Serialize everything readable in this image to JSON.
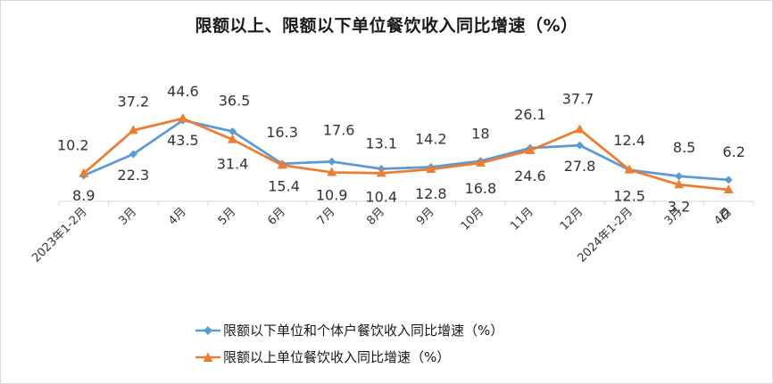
{
  "chart_data": {
    "type": "line",
    "title": "限额以上、限额以下单位餐饮收入同比增速（%）",
    "categories": [
      "2023年1-2月",
      "3月",
      "4月",
      "5月",
      "6月",
      "7月",
      "8月",
      "9月",
      "10月",
      "11月",
      "12月",
      "2024年1-2月",
      "3月",
      "4月"
    ],
    "series": [
      {
        "name": "限额以下单位和个体户餐饮收入同比增速（%）",
        "color": "#5b9bd5",
        "marker": "diamond",
        "values": [
          8.9,
          22.3,
          43.5,
          36.5,
          16.3,
          17.6,
          13.1,
          14.2,
          18,
          26.1,
          27.8,
          12.4,
          8.5,
          6.2
        ],
        "labels": [
          "8.9",
          "22.3",
          "43.5",
          "36.5",
          "16.3",
          "17.6",
          "13.1",
          "14.2",
          "18",
          "26.1",
          "27.8",
          "12.4",
          "8.5",
          "6.2"
        ]
      },
      {
        "name": "限额以上单位餐饮收入同比增速（%）",
        "color": "#ed7d31",
        "marker": "triangle",
        "values": [
          10.2,
          37.2,
          44.6,
          31.4,
          15.4,
          10.9,
          10.4,
          12.8,
          16.8,
          24.6,
          37.7,
          12.5,
          3.2,
          0
        ],
        "labels": [
          "10.2",
          "37.2",
          "44.6",
          "31.4",
          "15.4",
          "10.9",
          "10.4",
          "12.8",
          "16.8",
          "24.6",
          "37.7",
          "12.5",
          "3.2",
          "0"
        ]
      }
    ],
    "ylim": [
      0,
      50
    ],
    "grid": false,
    "legend_position": "bottom"
  }
}
